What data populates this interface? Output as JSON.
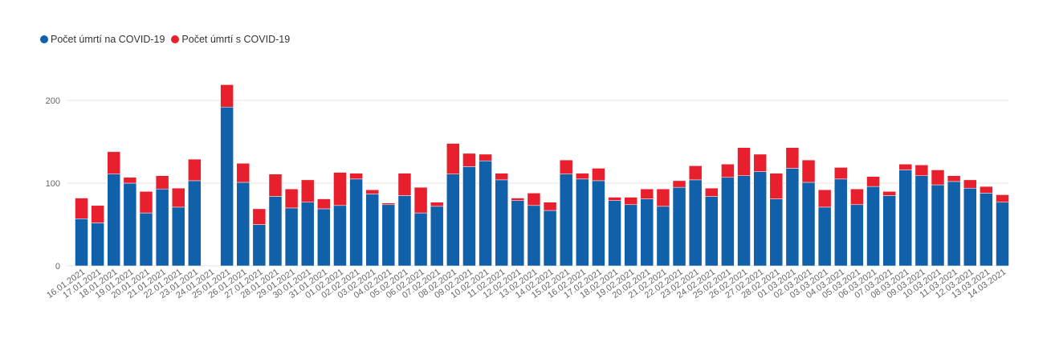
{
  "chart_data": {
    "type": "bar",
    "stacked": true,
    "categories": [
      "16.01.2021",
      "17.01.2021",
      "18.01.2021",
      "19.01.2021",
      "20.01.2021",
      "21.01.2021",
      "22.01.2021",
      "23.01.2021",
      "24.01.2021",
      "25.01.2021",
      "26.01.2021",
      "27.01.2021",
      "28.01.2021",
      "29.01.2021",
      "30.01.2021",
      "31.01.2021",
      "01.02.2021",
      "02.02.2021",
      "03.02.2021",
      "04.02.2021",
      "05.02.2021",
      "06.02.2021",
      "07.02.2021",
      "08.02.2021",
      "09.02.2021",
      "10.02.2021",
      "11.02.2021",
      "12.02.2021",
      "13.02.2021",
      "14.02.2021",
      "15.02.2021",
      "16.02.2021",
      "17.02.2021",
      "18.02.2021",
      "19.02.2021",
      "20.02.2021",
      "21.02.2021",
      "22.02.2021",
      "23.02.2021",
      "24.02.2021",
      "25.02.2021",
      "26.02.2021",
      "27.02.2021",
      "28.02.2021",
      "01.03.2021",
      "02.03.2021",
      "03.03.2021",
      "04.03.2021",
      "05.03.2021",
      "06.03.2021",
      "07.03.2021",
      "08.03.2021",
      "09.03.2021",
      "10.03.2021",
      "11.03.2021",
      "12.03.2021",
      "13.03.2021",
      "14.03.2021"
    ],
    "series": [
      {
        "name": "Počet úmrtí na COVID-19",
        "color": "#1060aa",
        "values": [
          57,
          52,
          111,
          100,
          64,
          93,
          71,
          103,
          null,
          192,
          101,
          50,
          84,
          70,
          77,
          69,
          73,
          105,
          87,
          74,
          85,
          64,
          72,
          111,
          120,
          127,
          104,
          79,
          73,
          67,
          111,
          105,
          103,
          79,
          74,
          81,
          72,
          95,
          104,
          84,
          107,
          109,
          114,
          81,
          118,
          101,
          71,
          105,
          74,
          96,
          85,
          116,
          109,
          98,
          102,
          94,
          88,
          77
        ]
      },
      {
        "name": "Počet úmrtí s COVID-19",
        "color": "#e8202e",
        "values": [
          25,
          21,
          27,
          7,
          26,
          16,
          23,
          26,
          null,
          27,
          23,
          19,
          27,
          23,
          27,
          12,
          40,
          7,
          5,
          2,
          27,
          31,
          5,
          37,
          16,
          8,
          8,
          3,
          15,
          10,
          17,
          7,
          15,
          4,
          9,
          12,
          21,
          8,
          17,
          10,
          16,
          34,
          21,
          31,
          25,
          27,
          21,
          14,
          19,
          12,
          5,
          7,
          13,
          18,
          7,
          10,
          8,
          9
        ]
      }
    ],
    "yticks": [
      0,
      100,
      200
    ],
    "ylim": [
      0,
      225
    ],
    "grid": true,
    "legend_position": "top-left",
    "title": "",
    "xlabel": "",
    "ylabel": ""
  }
}
